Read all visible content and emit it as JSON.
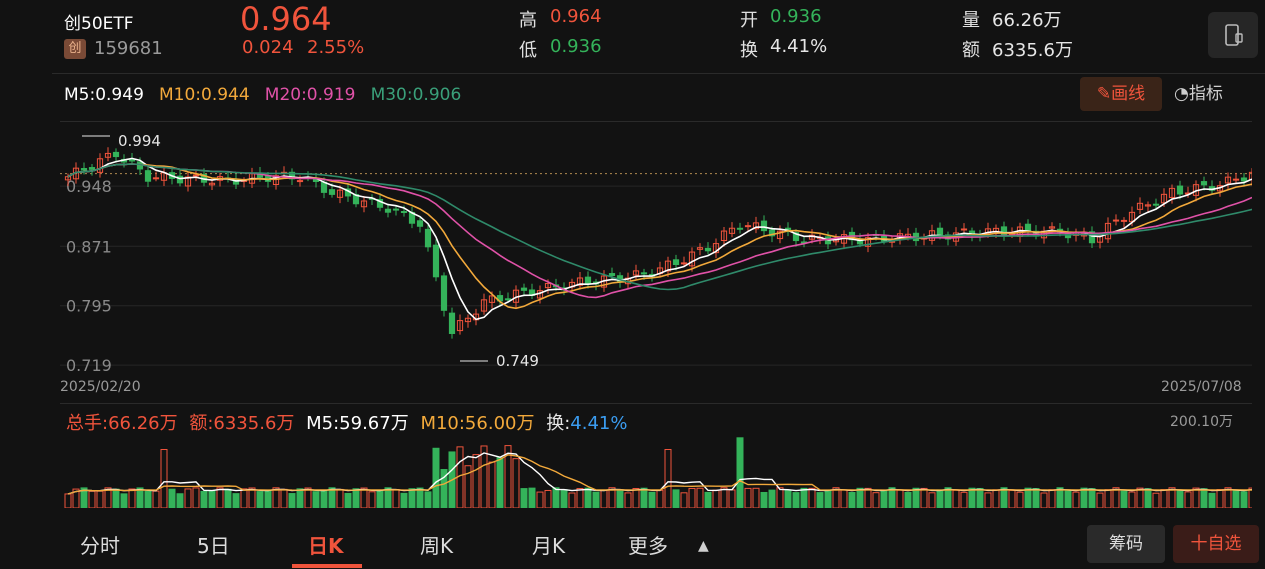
{
  "header": {
    "name": "创50ETF",
    "market_badge": "创",
    "code": "159681",
    "price": "0.964",
    "change": "0.024",
    "change_pct": "2.55%",
    "high_label": "高",
    "high_value": "0.964",
    "low_label": "低",
    "low_value": "0.936",
    "open_label": "开",
    "open_value": "0.936",
    "turnover_label": "换",
    "turnover_value": "4.41%",
    "volume_label": "量",
    "volume_value": "66.26万",
    "amount_label": "额",
    "amount_value": "6335.6万"
  },
  "ma_legend": {
    "m5": "M5:0.949",
    "m10": "M10:0.944",
    "m20": "M20:0.919",
    "m30": "M30:0.906"
  },
  "buttons": {
    "draw_line": "画线",
    "indicator": "指标",
    "chips": "筹码",
    "add_watch": "十自选"
  },
  "colors": {
    "up": "#f0543c",
    "down": "#34b35a",
    "m5": "#ffffff",
    "m10": "#f2a93b",
    "m20": "#e052a8",
    "m30": "#2f8a6a"
  },
  "chart_data": [
    {
      "type": "candlestick",
      "y_tick_labels": [
        "0.948",
        "0.871",
        "0.795",
        "0.719"
      ],
      "ylim": [
        0.7,
        1.03
      ],
      "x_start_label": "2025/02/20",
      "x_end_label": "2025/07/08",
      "max_annotation": "0.994",
      "min_annotation": "0.749",
      "last_close": 0.964,
      "grid": true
    },
    {
      "type": "bar",
      "title_total": "总手:66.26万",
      "title_amount": "额:6335.6万",
      "title_m5": "M5:59.67万",
      "title_m10": "M10:56.00万",
      "title_turnover_label": "换:",
      "title_turnover_value": "4.41%",
      "max_label": "200.10万"
    }
  ],
  "tabs": [
    "分时",
    "5日",
    "日K",
    "周K",
    "月K",
    "更多"
  ]
}
